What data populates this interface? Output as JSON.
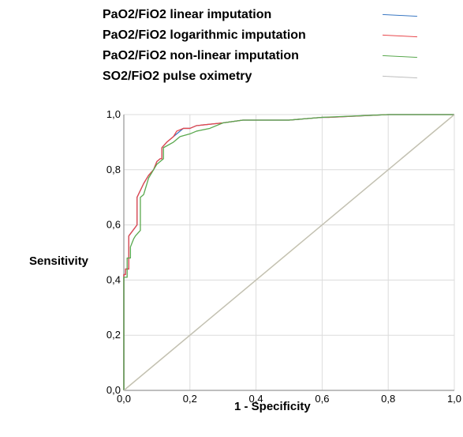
{
  "chart_data": {
    "type": "line",
    "xlabel": "1 - Specificity",
    "ylabel": "Sensitivity",
    "xlim": [
      0,
      1
    ],
    "ylim": [
      0,
      1
    ],
    "xticks": [
      "0,0",
      "0,2",
      "0,4",
      "0,6",
      "0,8",
      "1,0"
    ],
    "yticks": [
      "0,0",
      "0,2",
      "0,4",
      "0,6",
      "0,8",
      "1,0"
    ],
    "grid": true,
    "legend_position": "top",
    "series": [
      {
        "name": "PaO2/FiO2 linear imputation",
        "color": "#3a78c3",
        "x": [
          0,
          0,
          0.005,
          0.005,
          0.015,
          0.015,
          0.04,
          0.04,
          0.06,
          0.075,
          0.09,
          0.1,
          0.11,
          0.115,
          0.115,
          0.13,
          0.15,
          0.16,
          0.18,
          0.2,
          0.22,
          0.3,
          0.36,
          0.5,
          0.6,
          0.62,
          0.8,
          1.0
        ],
        "y": [
          0,
          0.42,
          0.42,
          0.44,
          0.44,
          0.56,
          0.6,
          0.7,
          0.75,
          0.78,
          0.8,
          0.83,
          0.84,
          0.84,
          0.88,
          0.9,
          0.92,
          0.93,
          0.95,
          0.95,
          0.96,
          0.97,
          0.98,
          0.98,
          0.99,
          0.99,
          1.0,
          1.0
        ]
      },
      {
        "name": "PaO2/FiO2 logarithmic imputation",
        "color": "#e8474c",
        "x": [
          0,
          0,
          0.005,
          0.005,
          0.015,
          0.015,
          0.04,
          0.04,
          0.06,
          0.075,
          0.09,
          0.1,
          0.11,
          0.115,
          0.115,
          0.13,
          0.15,
          0.16,
          0.18,
          0.2,
          0.22,
          0.3,
          0.36,
          0.5,
          0.6,
          0.62,
          0.8,
          1.0
        ],
        "y": [
          0,
          0.42,
          0.42,
          0.44,
          0.44,
          0.56,
          0.6,
          0.7,
          0.75,
          0.78,
          0.8,
          0.83,
          0.84,
          0.84,
          0.88,
          0.9,
          0.92,
          0.94,
          0.95,
          0.95,
          0.96,
          0.97,
          0.98,
          0.98,
          0.99,
          0.99,
          1.0,
          1.0
        ]
      },
      {
        "name": "PaO2/FiO2 non-linear imputation",
        "color": "#59a84e",
        "x": [
          0,
          0,
          0.01,
          0.01,
          0.02,
          0.02,
          0.03,
          0.035,
          0.05,
          0.05,
          0.06,
          0.075,
          0.09,
          0.1,
          0.11,
          0.12,
          0.12,
          0.15,
          0.17,
          0.2,
          0.22,
          0.26,
          0.3,
          0.36,
          0.5,
          0.6,
          0.8,
          1.0
        ],
        "y": [
          0,
          0.41,
          0.41,
          0.48,
          0.48,
          0.52,
          0.55,
          0.56,
          0.58,
          0.7,
          0.71,
          0.77,
          0.8,
          0.82,
          0.83,
          0.84,
          0.88,
          0.9,
          0.92,
          0.93,
          0.94,
          0.95,
          0.97,
          0.98,
          0.98,
          0.99,
          1.0,
          1.0
        ]
      },
      {
        "name": "SO2/FiO2 pulse oximetry",
        "color": "#bdbdbd",
        "x": [
          0,
          1
        ],
        "y": [
          0,
          1
        ]
      }
    ],
    "reference_line": {
      "x": [
        0,
        1
      ],
      "y": [
        0,
        1
      ],
      "color": "#f1e489"
    },
    "axis_color": "#aaaaaa",
    "grid_color": "#dcdcdc"
  }
}
